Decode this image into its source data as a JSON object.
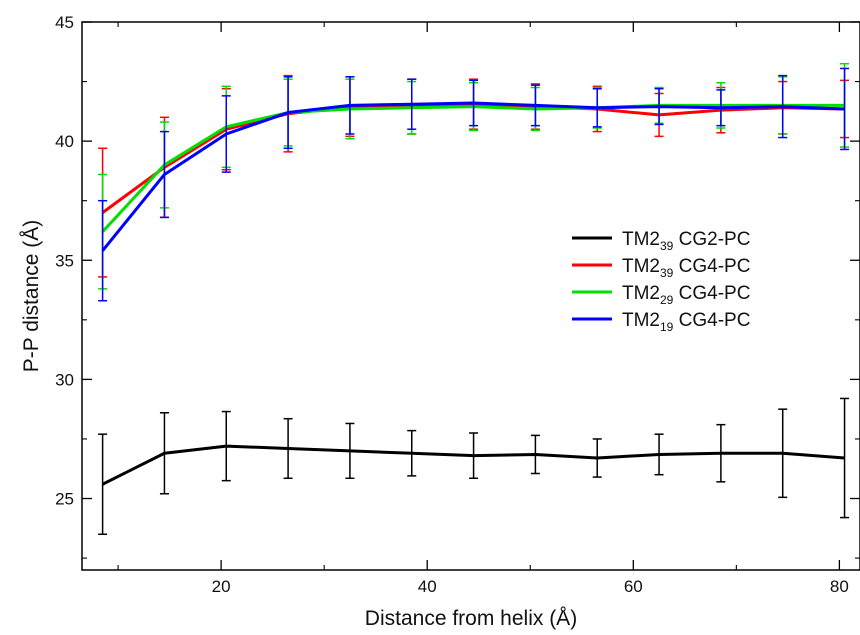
{
  "chart_data": {
    "type": "line",
    "title": "",
    "xlabel": "Distance from helix (Å)",
    "ylabel": "P-P distance (Å)",
    "xlim": [
      6.5,
      82
    ],
    "ylim": [
      22,
      45
    ],
    "x_ticks": [
      20,
      40,
      60,
      80
    ],
    "y_ticks": [
      25,
      30,
      35,
      40,
      45
    ],
    "x_tick_labels": [
      "20",
      "40",
      "60",
      "80"
    ],
    "y_tick_labels": [
      "25",
      "30",
      "35",
      "40",
      "45"
    ],
    "grid": false,
    "legend_position": "right",
    "x": [
      8.5,
      14.5,
      20.5,
      26.5,
      32.5,
      38.5,
      44.5,
      50.5,
      56.5,
      62.5,
      68.5,
      74.5,
      80.5
    ],
    "series": [
      {
        "legend_base": "TM2",
        "legend_sub": "39",
        "legend_suffix": " CG2-PC",
        "color": "#000000",
        "values": [
          25.6,
          26.9,
          27.2,
          27.1,
          27.0,
          26.9,
          26.8,
          26.85,
          26.7,
          26.85,
          26.9,
          26.9,
          26.7
        ],
        "errors": [
          2.1,
          1.7,
          1.45,
          1.25,
          1.15,
          0.95,
          0.95,
          0.8,
          0.8,
          0.85,
          1.2,
          1.85,
          2.5
        ]
      },
      {
        "legend_base": "TM2",
        "legend_sub": "39",
        "legend_suffix": " CG4-PC",
        "color": "#ff0000",
        "values": [
          37.0,
          38.9,
          40.5,
          41.15,
          41.45,
          41.45,
          41.55,
          41.45,
          41.35,
          41.1,
          41.3,
          41.4,
          41.35
        ],
        "errors": [
          2.7,
          2.1,
          1.7,
          1.6,
          1.25,
          1.15,
          1.05,
          0.95,
          0.95,
          0.9,
          0.95,
          1.1,
          1.2
        ]
      },
      {
        "legend_base": "TM2",
        "legend_sub": "29",
        "legend_suffix": " CG4-PC",
        "color": "#00e000",
        "values": [
          36.2,
          39.0,
          40.6,
          41.2,
          41.35,
          41.4,
          41.45,
          41.35,
          41.4,
          41.5,
          41.5,
          41.5,
          41.5
        ],
        "errors": [
          2.4,
          1.8,
          1.7,
          1.4,
          1.25,
          1.1,
          1.0,
          0.9,
          0.85,
          0.75,
          0.95,
          1.2,
          1.75
        ]
      },
      {
        "legend_base": "TM2",
        "legend_sub": "19",
        "legend_suffix": " CG4-PC",
        "color": "#0000ff",
        "values": [
          35.4,
          38.6,
          40.3,
          41.2,
          41.5,
          41.55,
          41.6,
          41.5,
          41.4,
          41.45,
          41.4,
          41.45,
          41.35
        ],
        "errors": [
          2.1,
          1.8,
          1.6,
          1.5,
          1.2,
          1.05,
          0.95,
          0.85,
          0.8,
          0.75,
          0.75,
          1.3,
          1.7
        ]
      }
    ]
  }
}
